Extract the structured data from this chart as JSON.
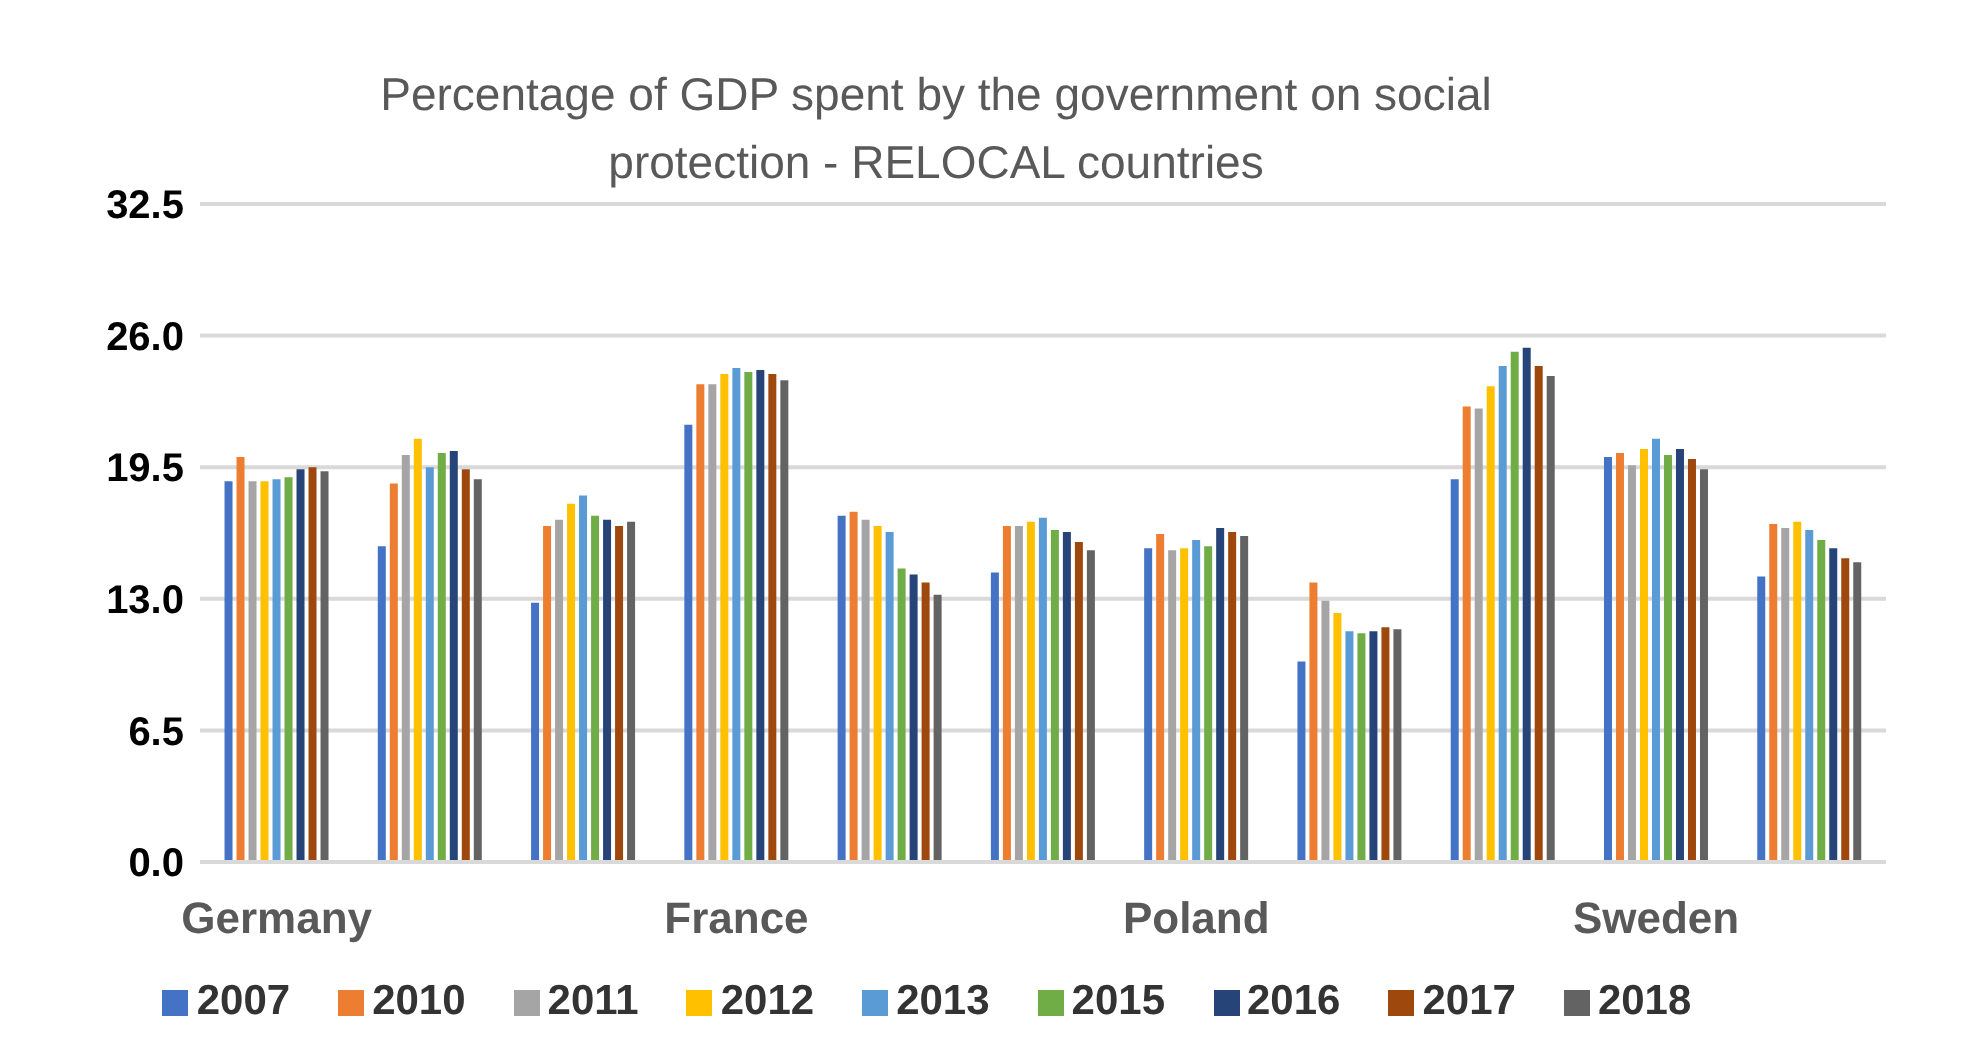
{
  "chart_data": {
    "type": "bar",
    "title": "Percentage of GDP spent by the government on social protection - RELOCAL countries",
    "categories": [
      "Germany",
      null,
      null,
      "France",
      null,
      null,
      "Poland",
      null,
      null,
      "Sweden",
      null
    ],
    "series": [
      {
        "name": "2007",
        "color": "#4472c4",
        "values": [
          18.8,
          15.6,
          12.8,
          21.6,
          17.1,
          14.3,
          15.5,
          9.9,
          18.9,
          20.0,
          14.1
        ]
      },
      {
        "name": "2010",
        "color": "#ed7d31",
        "values": [
          20.0,
          18.7,
          16.6,
          23.6,
          17.3,
          16.6,
          16.2,
          13.8,
          22.5,
          20.2,
          16.7
        ]
      },
      {
        "name": "2011",
        "color": "#a5a5a5",
        "values": [
          18.8,
          20.1,
          16.9,
          23.6,
          16.9,
          16.6,
          15.4,
          12.9,
          22.4,
          19.6,
          16.5
        ]
      },
      {
        "name": "2012",
        "color": "#ffc000",
        "values": [
          18.8,
          20.9,
          17.7,
          24.1,
          16.6,
          16.8,
          15.5,
          12.3,
          23.5,
          20.4,
          16.8
        ]
      },
      {
        "name": "2013",
        "color": "#5b9bd5",
        "values": [
          18.9,
          19.5,
          18.1,
          24.4,
          16.3,
          17.0,
          15.9,
          11.4,
          24.5,
          20.9,
          16.4
        ]
      },
      {
        "name": "2015",
        "color": "#70ad47",
        "values": [
          19.0,
          20.2,
          17.1,
          24.2,
          14.5,
          16.4,
          15.6,
          11.3,
          25.2,
          20.1,
          15.9
        ]
      },
      {
        "name": "2016",
        "color": "#264478",
        "values": [
          19.4,
          20.3,
          16.9,
          24.3,
          14.2,
          16.3,
          16.5,
          11.4,
          25.4,
          20.4,
          15.5
        ]
      },
      {
        "name": "2017",
        "color": "#9e480e",
        "values": [
          19.5,
          19.4,
          16.6,
          24.1,
          13.8,
          15.8,
          16.3,
          11.6,
          24.5,
          19.9,
          15.0
        ]
      },
      {
        "name": "2018",
        "color": "#636363",
        "values": [
          19.3,
          18.9,
          16.8,
          23.8,
          13.2,
          15.4,
          16.1,
          11.5,
          24.0,
          19.4,
          14.8
        ]
      }
    ],
    "ylim": [
      0,
      32.5
    ],
    "yticks": [
      {
        "value": 0,
        "label": "0.0"
      },
      {
        "value": 6.5,
        "label": "6.5"
      },
      {
        "value": 13,
        "label": "13.0"
      },
      {
        "value": 19.5,
        "label": "19.5"
      },
      {
        "value": 26,
        "label": "26.0"
      },
      {
        "value": 32.5,
        "label": "32.5"
      }
    ],
    "grid": "y",
    "legend": "bottom"
  }
}
